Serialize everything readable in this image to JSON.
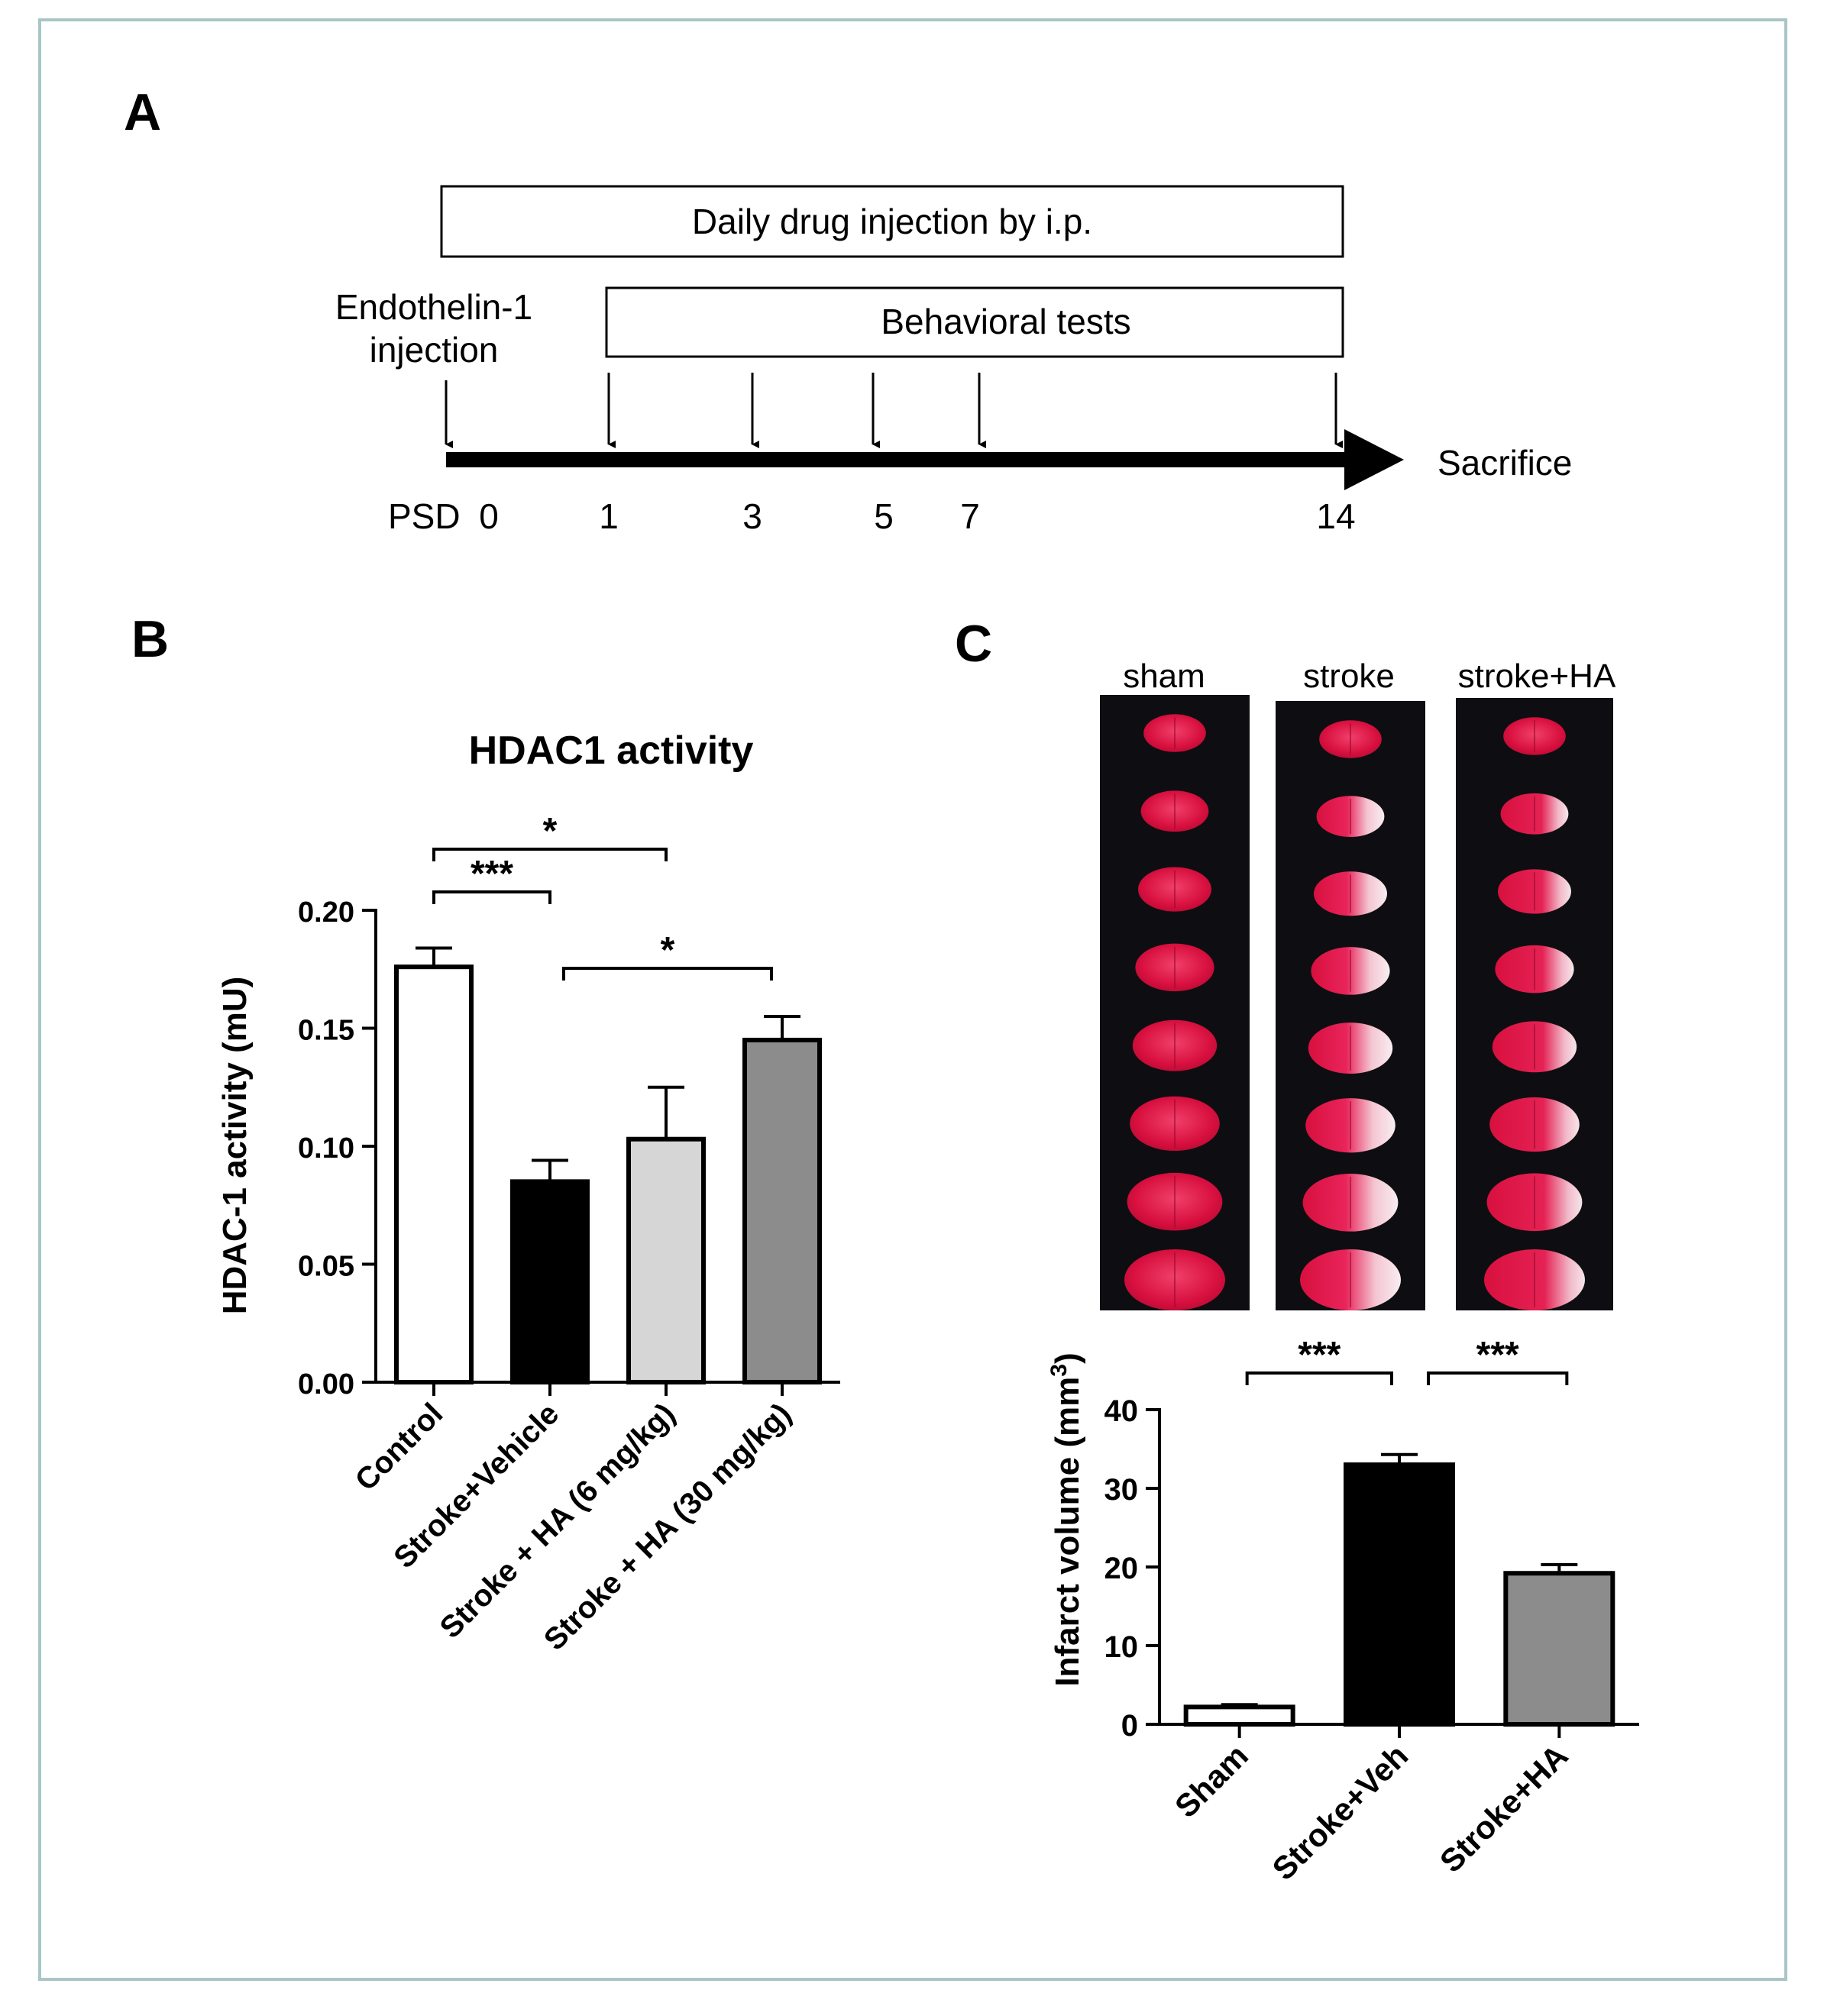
{
  "panel_a": {
    "label": "A",
    "bar_drug": "Daily drug injection by i.p.",
    "bar_behavior": "Behavioral tests",
    "injection_line1": "Endothelin-1",
    "injection_line2": "injection",
    "end_label": "Sacrifice",
    "psd_label": "PSD",
    "days": [
      "0",
      "1",
      "3",
      "5",
      "7",
      "14"
    ]
  },
  "panel_b": {
    "label": "B",
    "chart_data": {
      "type": "bar",
      "title": "HDAC1 activity",
      "xlabel": "",
      "ylabel": "HDAC-1 activity (mU)",
      "ylim": [
        0,
        0.2
      ],
      "yticks": [
        "0.00",
        "0.05",
        "0.10",
        "0.15",
        "0.20"
      ],
      "categories": [
        "Control",
        "Stroke+Vehicle",
        "Stroke + HA (6 mg/kg)",
        "Stroke + HA (30 mg/kg)"
      ],
      "values": [
        0.176,
        0.085,
        0.103,
        0.145
      ],
      "errors": [
        0.008,
        0.009,
        0.022,
        0.01
      ],
      "colors": [
        "#ffffff",
        "#000000",
        "#d6d6d6",
        "#8c8c8c"
      ],
      "significance": [
        {
          "from": 0,
          "to": 1,
          "label": "***"
        },
        {
          "from": 0,
          "to": 2,
          "label": "*"
        },
        {
          "from": 1,
          "to": 3,
          "label": "*"
        }
      ]
    }
  },
  "panel_c": {
    "label": "C",
    "photo_labels": [
      "sham",
      "stroke",
      "stroke+HA"
    ],
    "chart_data": {
      "type": "bar",
      "title": "",
      "xlabel": "",
      "ylabel": "Infarct volume (mm",
      "ylabel_sup": "3",
      "ylabel_close": ")",
      "ylim": [
        0,
        40
      ],
      "yticks": [
        "0",
        "10",
        "20",
        "30",
        "40"
      ],
      "categories": [
        "Sham",
        "Stroke+Veh",
        "Stroke+HA"
      ],
      "values": [
        2.2,
        33.0,
        19.2
      ],
      "errors": [
        0.3,
        1.3,
        1.1
      ],
      "colors": [
        "#ffffff",
        "#000000",
        "#8c8c8c"
      ],
      "significance": [
        {
          "from": 0,
          "to": 1,
          "label": "***"
        },
        {
          "from": 1,
          "to": 2,
          "label": "***"
        }
      ]
    }
  }
}
